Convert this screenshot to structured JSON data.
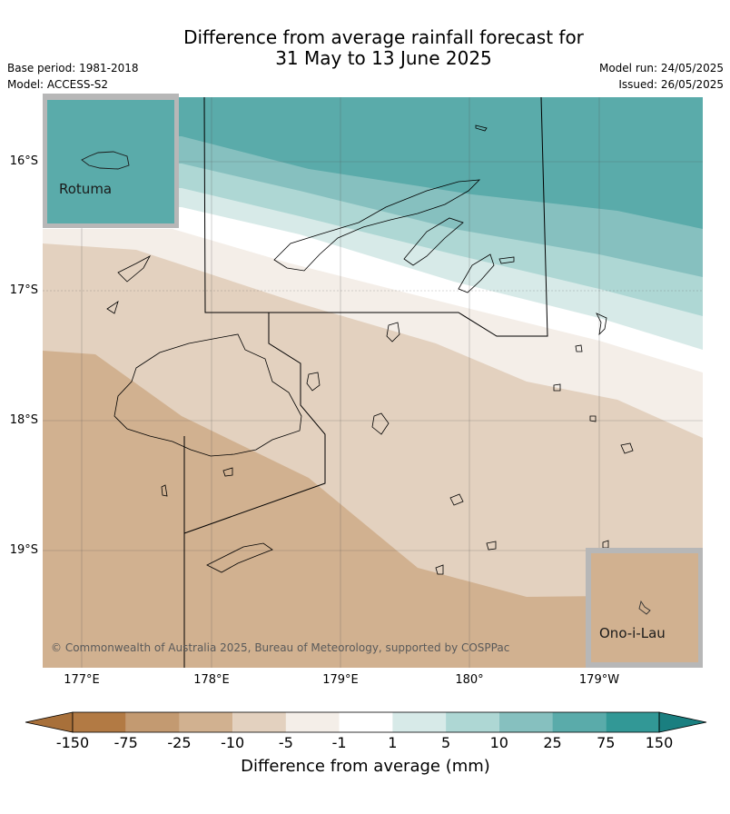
{
  "title_line1": "Difference from average rainfall forecast for",
  "title_line2": "31 May to 13 June 2025",
  "base_period": "Base period: 1981-2018",
  "model": "Model: ACCESS-S2",
  "model_run": "Model run: 24/05/2025",
  "issued": "Issued: 26/05/2025",
  "lon_labels": [
    "177°E",
    "178°E",
    "179°E",
    "180°",
    "179°W"
  ],
  "lat_labels": [
    "16°S",
    "17°S",
    "18°S",
    "19°S"
  ],
  "inset_rotuma": "Rotuma",
  "inset_onoilau": "Ono-i-Lau",
  "copyright": "© Commonwealth of Australia 2025, Bureau of Meteorology, supported by COSPPac",
  "colorbar": {
    "ticks": [
      "-150",
      "-75",
      "-25",
      "-10",
      "-5",
      "-1",
      "1",
      "5",
      "10",
      "25",
      "75",
      "150"
    ],
    "label": "Difference from average (mm)",
    "colors": [
      "#a8703a",
      "#b27a44",
      "#c39a71",
      "#d1b190",
      "#e3d1bf",
      "#f4eee8",
      "#ffffff",
      "#d7eae8",
      "#aed7d4",
      "#86c0bf",
      "#5aabaa",
      "#329896",
      "#1a7f80"
    ]
  }
}
